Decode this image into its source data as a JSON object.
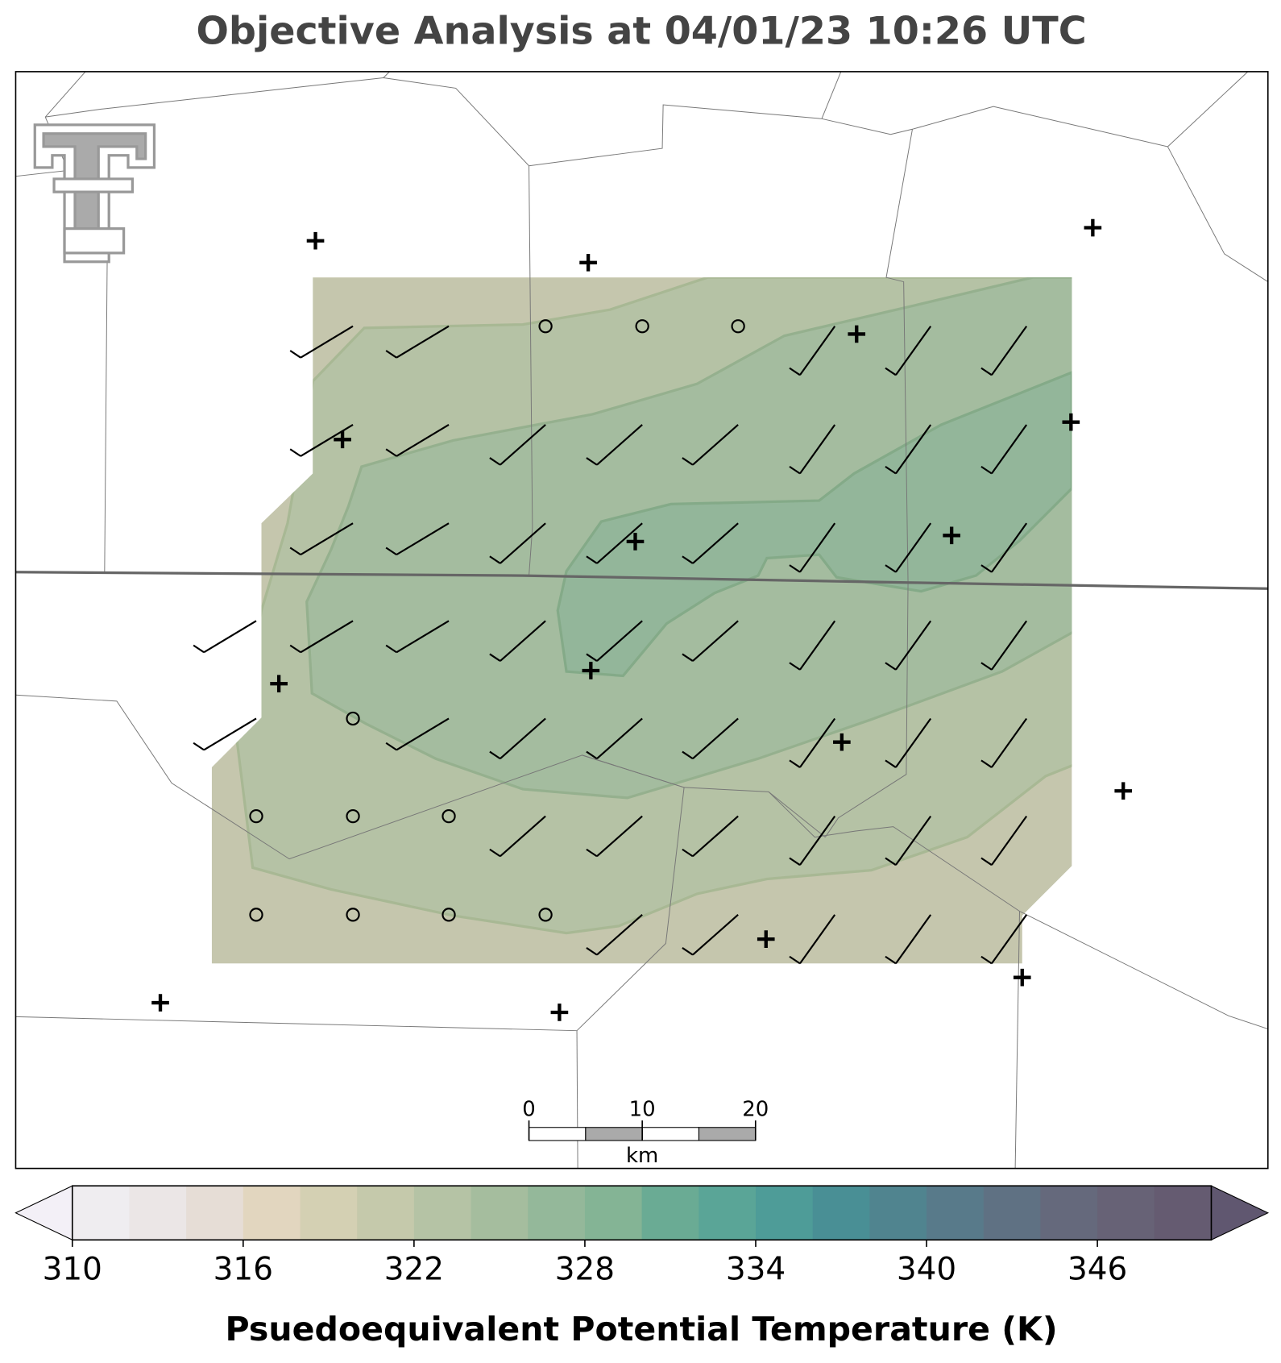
{
  "title": "Objective Analysis at 04/01/23 10:26 UTC",
  "colorbar": {
    "lim": [
      310,
      350
    ],
    "ticks": [
      310,
      316,
      322,
      328,
      334,
      340,
      346
    ],
    "colors": [
      "#efedf0",
      "#ebe6e6",
      "#e6ddd6",
      "#e2d6bf",
      "#d4d0b3",
      "#c5c9ab",
      "#b5c3a5",
      "#a5bd9e",
      "#94b89a",
      "#84b495",
      "#6aab94",
      "#5aa597",
      "#4e9c98",
      "#498f95",
      "#50848f",
      "#587a8a",
      "#5f7183",
      "#65697c",
      "#676276",
      "#655b71"
    ],
    "under_color": "#f3f0f7",
    "over_color": "#605770",
    "label": "Psuedoequivalent Potential Temperature (K)"
  },
  "scale_bar": {
    "lim": [
      0,
      20
    ],
    "ticks": [
      0,
      10,
      20
    ],
    "unit": "km"
  }
}
